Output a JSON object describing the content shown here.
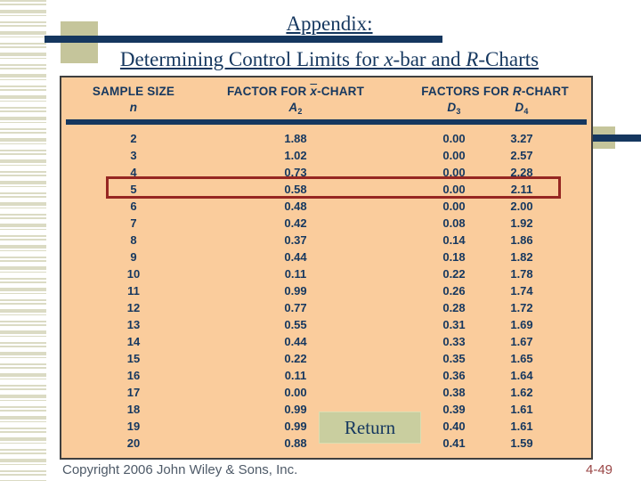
{
  "title": {
    "line1": "Appendix:",
    "line2": {
      "pre": "Determining Control Limits for ",
      "italic1": "x",
      "mid": "-bar and ",
      "italic2": "R",
      "post": "-Charts"
    }
  },
  "table": {
    "headers": {
      "col1_line1": "SAMPLE SIZE",
      "col1_line2": "n",
      "col2_line1": {
        "pre": "FACTOR FOR ",
        "sym": "x",
        "post": "-CHART"
      },
      "col2_line2": {
        "letter": "A",
        "sub": "2"
      },
      "col3_line1": {
        "pre": "FACTORS FOR ",
        "sym": "R",
        "post": "-CHART"
      },
      "col3_sub1": {
        "letter": "D",
        "sub": "3"
      },
      "col3_sub2": {
        "letter": "D",
        "sub": "4"
      }
    },
    "rows": [
      {
        "n": "2",
        "a2": "1.88",
        "d3": "0.00",
        "d4": "3.27"
      },
      {
        "n": "3",
        "a2": "1.02",
        "d3": "0.00",
        "d4": "2.57"
      },
      {
        "n": "4",
        "a2": "0.73",
        "d3": "0.00",
        "d4": "2.28"
      },
      {
        "n": "5",
        "a2": "0.58",
        "d3": "0.00",
        "d4": "2.11"
      },
      {
        "n": "6",
        "a2": "0.48",
        "d3": "0.00",
        "d4": "2.00"
      },
      {
        "n": "7",
        "a2": "0.42",
        "d3": "0.08",
        "d4": "1.92"
      },
      {
        "n": "8",
        "a2": "0.37",
        "d3": "0.14",
        "d4": "1.86"
      },
      {
        "n": "9",
        "a2": "0.44",
        "d3": "0.18",
        "d4": "1.82"
      },
      {
        "n": "10",
        "a2": "0.11",
        "d3": "0.22",
        "d4": "1.78"
      },
      {
        "n": "11",
        "a2": "0.99",
        "d3": "0.26",
        "d4": "1.74"
      },
      {
        "n": "12",
        "a2": "0.77",
        "d3": "0.28",
        "d4": "1.72"
      },
      {
        "n": "13",
        "a2": "0.55",
        "d3": "0.31",
        "d4": "1.69"
      },
      {
        "n": "14",
        "a2": "0.44",
        "d3": "0.33",
        "d4": "1.67"
      },
      {
        "n": "15",
        "a2": "0.22",
        "d3": "0.35",
        "d4": "1.65"
      },
      {
        "n": "16",
        "a2": "0.11",
        "d3": "0.36",
        "d4": "1.64"
      },
      {
        "n": "17",
        "a2": "0.00",
        "d3": "0.38",
        "d4": "1.62"
      },
      {
        "n": "18",
        "a2": "0.99",
        "d3": "0.39",
        "d4": "1.61"
      },
      {
        "n": "19",
        "a2": "0.99",
        "d3": "0.40",
        "d4": "1.61"
      },
      {
        "n": "20",
        "a2": "0.88",
        "d3": "0.41",
        "d4": "1.59"
      }
    ],
    "highlighted_row_n": "5"
  },
  "return_button": {
    "label": "Return"
  },
  "footer": {
    "copyright": "Copyright 2006 John Wiley & Sons, Inc.",
    "page": "4-49"
  },
  "colors": {
    "navy": "#15375F",
    "peach": "#FACC9C",
    "tborder": "#3F3F3F",
    "hl": "#962722",
    "sage": "#C9CE9F",
    "sage-border": "#DADEB2",
    "stripe": "#DBDBC4",
    "tan": "#C5C59B",
    "copy": "#4E5A68",
    "pagered": "#9A4646"
  }
}
